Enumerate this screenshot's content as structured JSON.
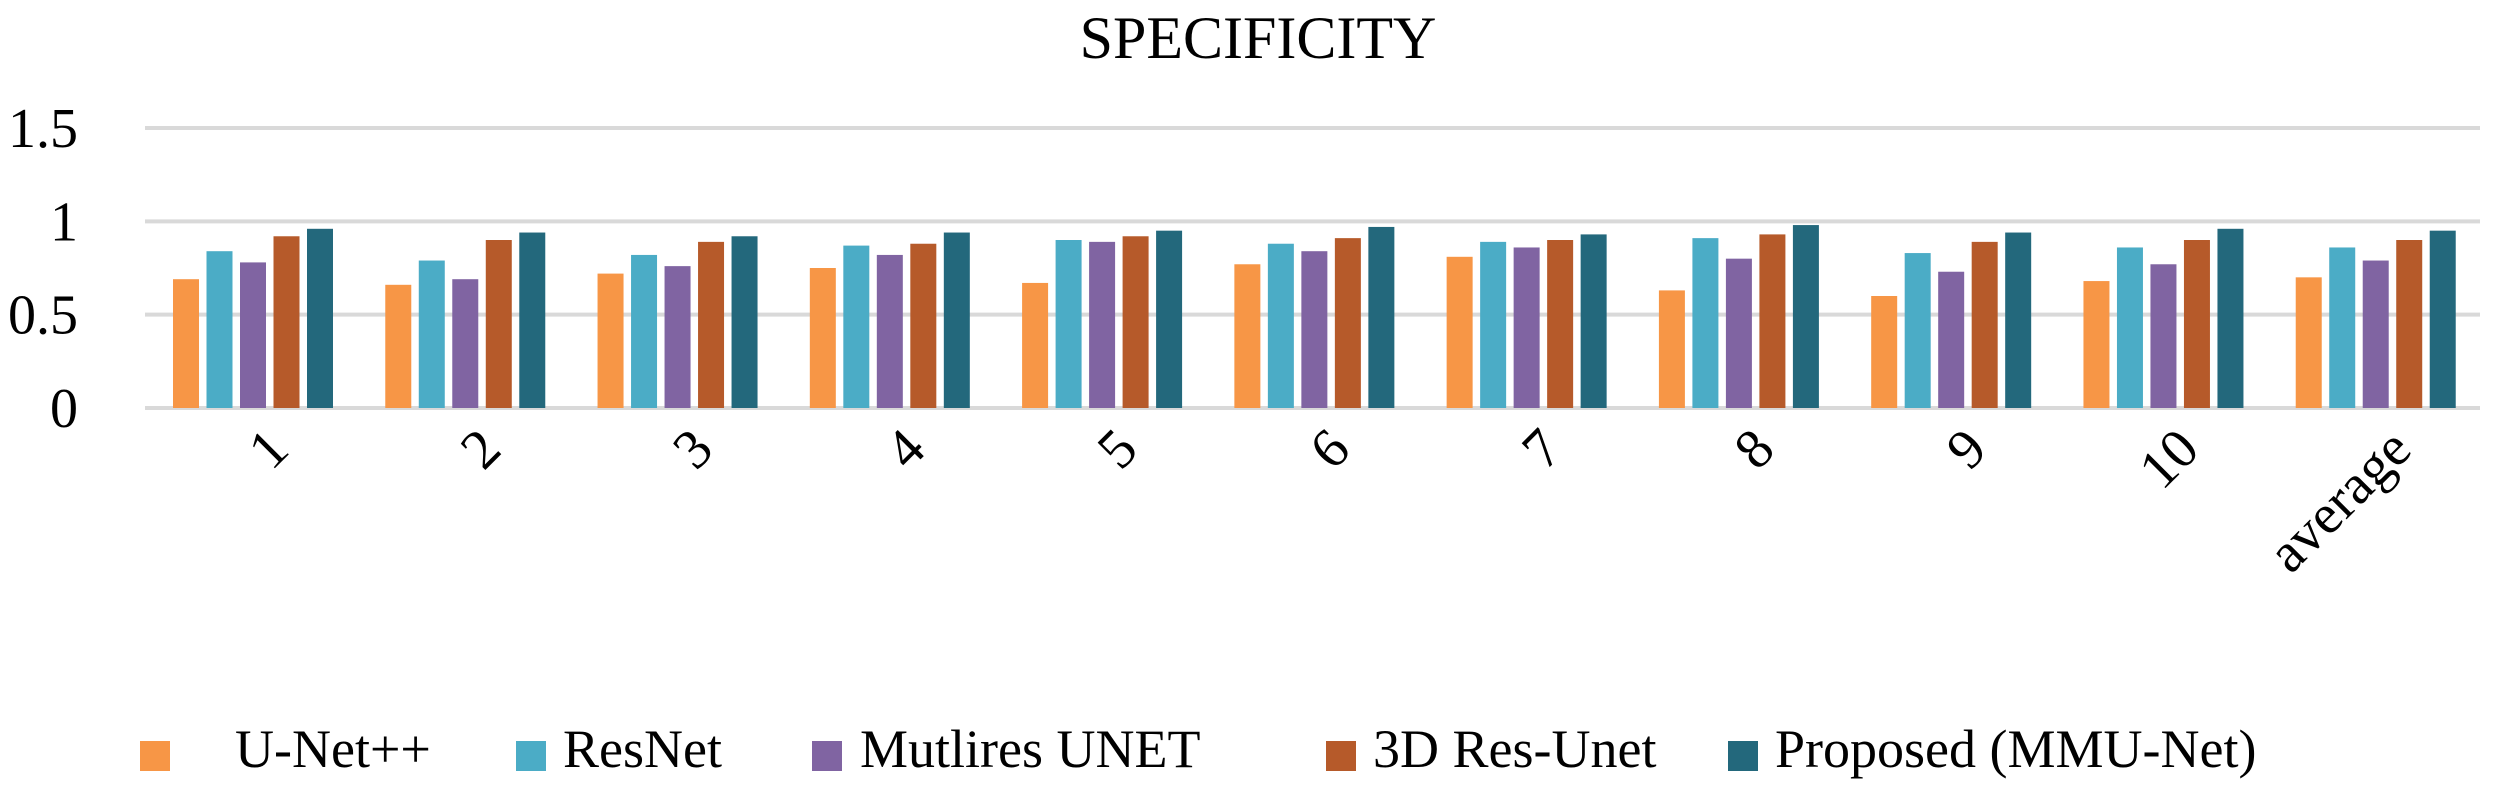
{
  "chart_data": {
    "type": "bar",
    "title": "SPECIFICITY",
    "xlabel": "",
    "ylabel": "",
    "ylim": [
      0,
      1.5
    ],
    "yticks": [
      "0",
      "0.5",
      "1",
      "1.5"
    ],
    "grid": true,
    "legend_position": "bottom",
    "categories": [
      "1",
      "2",
      "3",
      "4",
      "5",
      "6",
      "7",
      "8",
      "9",
      "10",
      "average"
    ],
    "series": [
      {
        "name": "U-Net++",
        "color": "#F79646",
        "values": [
          0.69,
          0.66,
          0.72,
          0.75,
          0.67,
          0.77,
          0.81,
          0.63,
          0.6,
          0.68,
          0.7
        ]
      },
      {
        "name": "ResNet",
        "color": "#4BACC6",
        "values": [
          0.84,
          0.79,
          0.82,
          0.87,
          0.9,
          0.88,
          0.89,
          0.91,
          0.83,
          0.86,
          0.86
        ]
      },
      {
        "name": "Mutlires UNET",
        "color": "#8064A2",
        "values": [
          0.78,
          0.69,
          0.76,
          0.82,
          0.89,
          0.84,
          0.86,
          0.8,
          0.73,
          0.77,
          0.79
        ]
      },
      {
        "name": "3D Res-Unet",
        "color": "#B65A2A",
        "values": [
          0.92,
          0.9,
          0.89,
          0.88,
          0.92,
          0.91,
          0.9,
          0.93,
          0.89,
          0.9,
          0.9
        ]
      },
      {
        "name": "Proposed (MMU-Net)",
        "color": "#23687C",
        "values": [
          0.96,
          0.94,
          0.92,
          0.94,
          0.95,
          0.97,
          0.93,
          0.98,
          0.94,
          0.96,
          0.95
        ]
      }
    ]
  }
}
